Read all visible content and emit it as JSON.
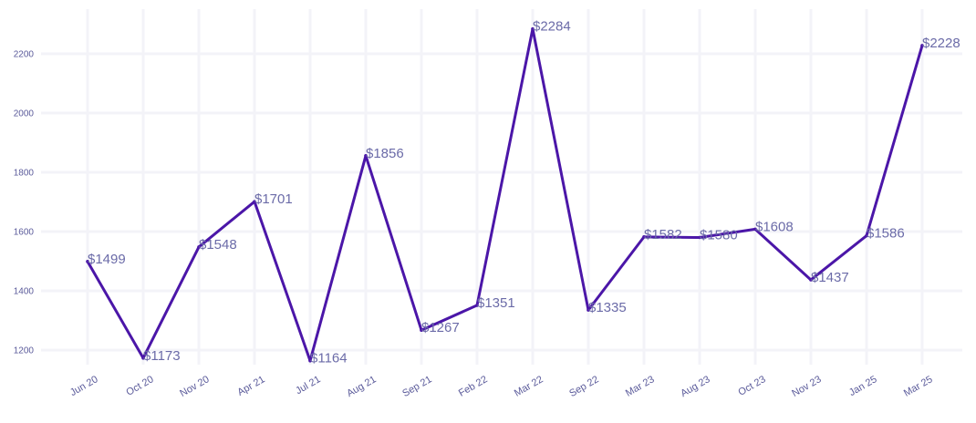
{
  "chart_data": {
    "type": "line",
    "title": "",
    "xlabel": "",
    "ylabel": "",
    "categories": [
      "Jun 20",
      "Oct 20",
      "Nov 20",
      "Apr 21",
      "Jul 21",
      "Aug 21",
      "Sep 21",
      "Feb 22",
      "Mar 22",
      "Sep 22",
      "Mar 23",
      "Aug 23",
      "Oct 23",
      "Nov 23",
      "Jan 25",
      "Mar 25"
    ],
    "values": [
      1499,
      1173,
      1548,
      1701,
      1164,
      1856,
      1267,
      1351,
      2284,
      1335,
      1582,
      1580,
      1608,
      1437,
      1586,
      2228
    ],
    "data_labels": [
      "$1499",
      "$1173",
      "$1548",
      "$1701",
      "$1164",
      "$1856",
      "$1267",
      "$1351",
      "$2284",
      "$1335",
      "$1582",
      "$1580",
      "$1608",
      "$1437",
      "$1586",
      "$2228"
    ],
    "y_ticks": [
      1200,
      1400,
      1600,
      1800,
      2000,
      2200
    ],
    "ylim": [
      1120,
      2320
    ],
    "grid": true,
    "legend": "none",
    "colors": {
      "line": "#4b16a8",
      "labels": "#6b6ba8",
      "ticks": "#5a5a9a",
      "grid": "#f3f3f8"
    }
  }
}
